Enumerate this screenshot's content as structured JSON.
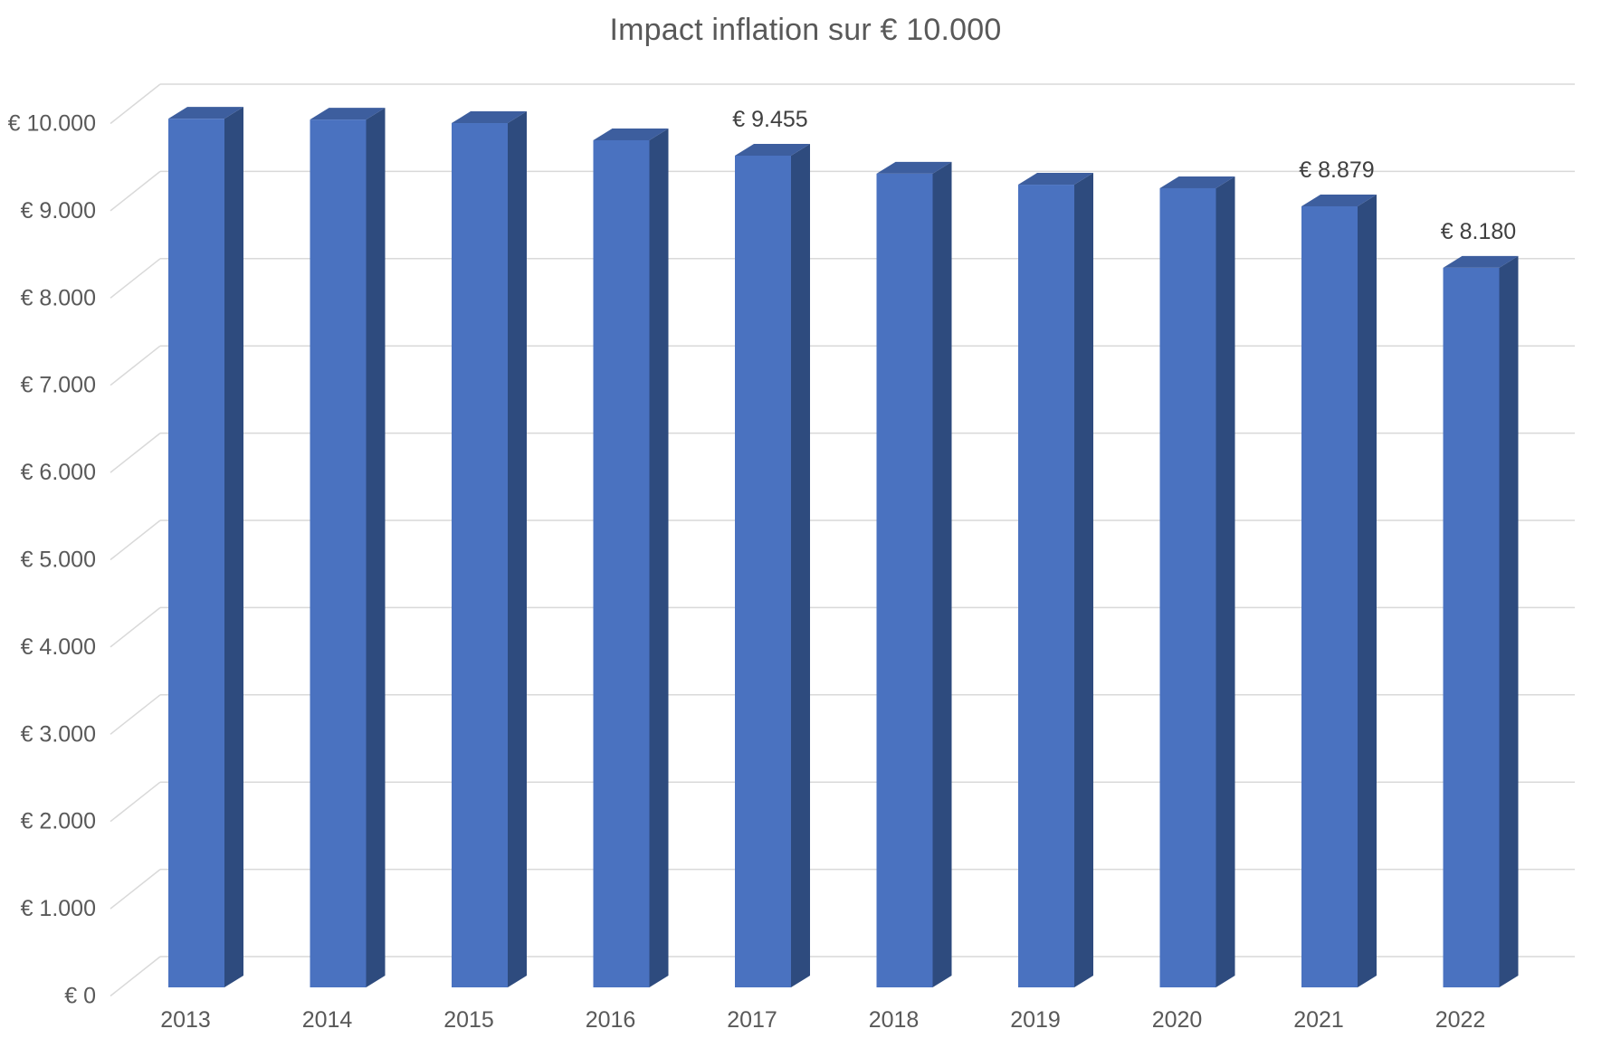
{
  "chart_data": {
    "type": "bar",
    "variant": "3d-column",
    "title": "Impact inflation sur € 10.000",
    "categories": [
      "2013",
      "2014",
      "2015",
      "2016",
      "2017",
      "2018",
      "2019",
      "2020",
      "2021",
      "2022"
    ],
    "values": [
      9875,
      9865,
      9825,
      9630,
      9455,
      9250,
      9125,
      9085,
      8879,
      8180
    ],
    "data_labels": [
      "",
      "",
      "",
      "",
      "€ 9.455",
      "",
      "",
      "",
      "€ 8.879",
      "€ 8.180"
    ],
    "y_ticks": [
      {
        "value": 10000,
        "label": "€ 10.000"
      },
      {
        "value": 9000,
        "label": "€ 9.000"
      },
      {
        "value": 8000,
        "label": "€ 8.000"
      },
      {
        "value": 7000,
        "label": "€ 7.000"
      },
      {
        "value": 6000,
        "label": "€ 6.000"
      },
      {
        "value": 5000,
        "label": "€ 5.000"
      },
      {
        "value": 4000,
        "label": "€ 4.000"
      },
      {
        "value": 3000,
        "label": "€ 3.000"
      },
      {
        "value": 2000,
        "label": "€ 2.000"
      },
      {
        "value": 1000,
        "label": "€ 1.000"
      },
      {
        "value": 0,
        "label": "€ 0"
      }
    ],
    "ylim": [
      0,
      10000
    ],
    "xlabel": "",
    "ylabel": "",
    "grid": true,
    "legend_position": "none",
    "colors": {
      "bar_front": "#4A72C0",
      "bar_top": "#3D5E9E",
      "bar_side": "#2E4B7E",
      "gridline": "#D9D9D9",
      "axis_text": "#595959",
      "data_label_text": "#404040",
      "title_text": "#595959",
      "background": "#FFFFFF"
    }
  }
}
